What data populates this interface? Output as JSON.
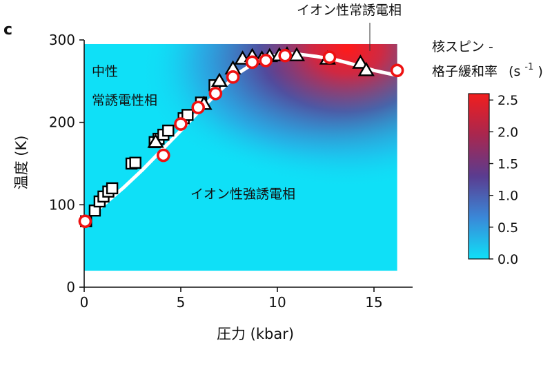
{
  "panel_label": "c",
  "chart_data": {
    "type": "scatter",
    "title": "",
    "xlabel": "圧力 (kbar)",
    "ylabel": "温度 (K)",
    "xlim": [
      0,
      17
    ],
    "ylim": [
      0,
      300
    ],
    "xticks": [
      0,
      5,
      10,
      15
    ],
    "yticks": [
      0,
      100,
      200,
      300
    ],
    "heatmap": {
      "quantity_label_line1": "核スピン -",
      "quantity_label_line2": "格子緩和率",
      "unit_label": "(s",
      "unit_exponent": "-1",
      "unit_close": ")",
      "colorbar_range": [
        0.0,
        2.6
      ],
      "colorbar_ticks": [
        "0.0",
        "0.5",
        "1.0",
        "1.5",
        "2.0",
        "2.5"
      ],
      "colormap": [
        "#0fe0f7",
        "#3a88d8",
        "#5a3c90",
        "#a8274f",
        "#f11e1e"
      ],
      "data_extent_x": [
        0,
        16.2
      ],
      "data_extent_y": [
        20,
        295
      ]
    },
    "regions": {
      "neutral_line1": "中性",
      "neutral_line2": "常誘電性相",
      "ferroelectric": "イオン性強誘電相",
      "paraelectric": "イオン性常誘電相"
    },
    "phase_boundary": {
      "x": [
        0,
        1,
        2,
        3,
        4,
        5,
        6,
        7,
        8,
        9,
        10,
        11,
        12,
        13,
        14,
        15,
        16.2
      ],
      "y": [
        80,
        100,
        120,
        142,
        166,
        190,
        215,
        238,
        260,
        275,
        282,
        283,
        280,
        276,
        270,
        263,
        257
      ]
    },
    "series": [
      {
        "name": "squares",
        "marker": "square",
        "x": [
          0.1,
          0.55,
          0.8,
          1.0,
          1.25,
          1.45,
          2.45,
          2.65,
          3.65,
          3.85,
          4.1,
          4.35,
          5.15,
          5.35,
          6.05,
          6.75
        ],
        "y": [
          80,
          93,
          104,
          110,
          116,
          120,
          150,
          151,
          176,
          180,
          185,
          190,
          205,
          209,
          224,
          245
        ]
      },
      {
        "name": "triangles",
        "marker": "triangle",
        "x": [
          3.7,
          6.2,
          7.0,
          7.7,
          8.2,
          8.7,
          9.2,
          9.6,
          10.1,
          10.5,
          11.0,
          12.6,
          14.3,
          14.6
        ],
        "y": [
          176,
          222,
          250,
          265,
          277,
          280,
          277,
          280,
          281,
          282,
          281,
          277,
          272,
          263
        ]
      },
      {
        "name": "circles",
        "marker": "circle",
        "x": [
          0.05,
          4.1,
          5.0,
          5.9,
          6.8,
          7.7,
          8.7,
          9.4,
          10.4,
          12.7,
          16.2
        ],
        "y": [
          80,
          160,
          198,
          218,
          235,
          255,
          273,
          275,
          281,
          279,
          263
        ]
      }
    ]
  }
}
